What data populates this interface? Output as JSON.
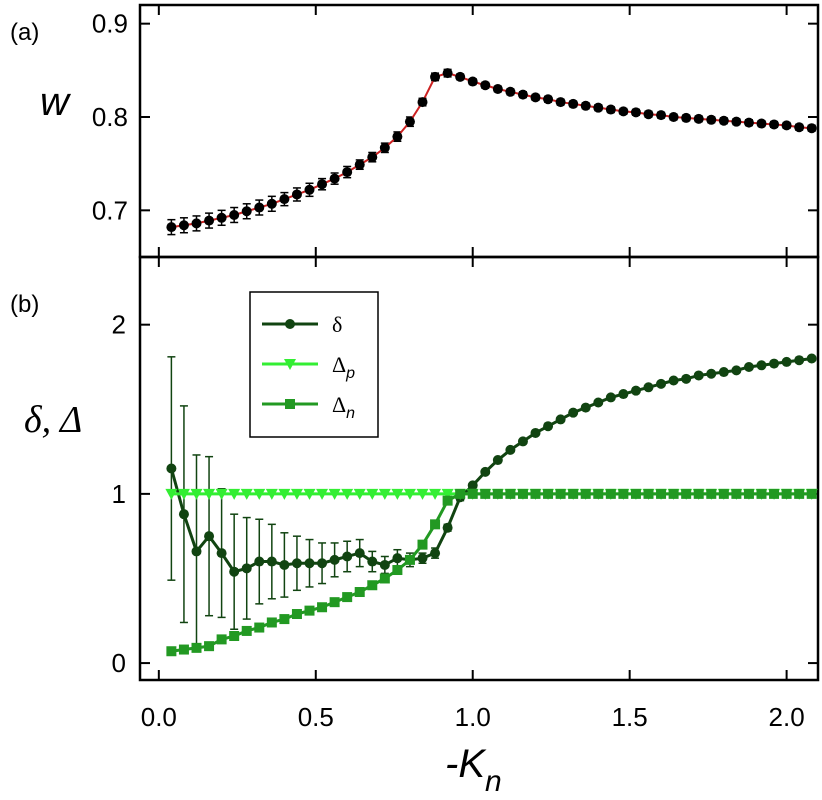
{
  "chart_data": [
    {
      "panel_label": "(a)",
      "type": "line",
      "ylabel": "w",
      "ylim": [
        0.65,
        0.92
      ],
      "y_ticks": [
        "0.7",
        "0.8",
        "0.9"
      ],
      "y_tick_values": [
        0.7,
        0.8,
        0.9
      ],
      "xlim": [
        -0.06,
        2.1
      ],
      "series": [
        {
          "name": "w",
          "marker": "circle",
          "color": "#000000",
          "line_color": "#cc2222",
          "x": [
            0.04,
            0.08,
            0.12,
            0.16,
            0.2,
            0.24,
            0.28,
            0.32,
            0.36,
            0.4,
            0.44,
            0.48,
            0.52,
            0.56,
            0.6,
            0.64,
            0.68,
            0.72,
            0.76,
            0.8,
            0.84,
            0.88,
            0.92,
            0.96,
            1.0,
            1.04,
            1.08,
            1.12,
            1.16,
            1.2,
            1.24,
            1.28,
            1.32,
            1.36,
            1.4,
            1.44,
            1.48,
            1.52,
            1.56,
            1.6,
            1.64,
            1.68,
            1.72,
            1.76,
            1.8,
            1.84,
            1.88,
            1.92,
            1.96,
            2.0,
            2.04,
            2.08
          ],
          "y": [
            0.682,
            0.684,
            0.686,
            0.689,
            0.692,
            0.695,
            0.699,
            0.703,
            0.707,
            0.712,
            0.717,
            0.722,
            0.728,
            0.734,
            0.741,
            0.749,
            0.757,
            0.767,
            0.779,
            0.795,
            0.816,
            0.843,
            0.847,
            0.843,
            0.838,
            0.834,
            0.83,
            0.827,
            0.824,
            0.821,
            0.819,
            0.816,
            0.814,
            0.812,
            0.81,
            0.808,
            0.806,
            0.805,
            0.803,
            0.802,
            0.8,
            0.799,
            0.798,
            0.797,
            0.796,
            0.795,
            0.794,
            0.793,
            0.792,
            0.791,
            0.789,
            0.788
          ],
          "yerr": [
            0.008,
            0.008,
            0.008,
            0.008,
            0.008,
            0.008,
            0.008,
            0.008,
            0.008,
            0.007,
            0.007,
            0.007,
            0.006,
            0.006,
            0.006,
            0.005,
            0.005,
            0.005,
            0.005,
            0.005,
            0.004,
            0.004,
            0.004,
            0.003,
            0.003,
            0.003,
            0.003,
            0.003,
            0.003,
            0.003,
            0.003,
            0.003,
            0.003,
            0.003,
            0.003,
            0.003,
            0.003,
            0.003,
            0.003,
            0.003,
            0.003,
            0.003,
            0.003,
            0.003,
            0.003,
            0.003,
            0.003,
            0.003,
            0.003,
            0.003,
            0.003,
            0.003
          ]
        }
      ]
    },
    {
      "panel_label": "(b)",
      "type": "line",
      "ylabel": "δ, Δ",
      "xlabel": "-K",
      "xlabel_sub": "n",
      "ylim": [
        -0.1,
        2.4
      ],
      "xlim": [
        -0.06,
        2.1
      ],
      "y_ticks": [
        "0",
        "1",
        "2"
      ],
      "y_tick_values": [
        0,
        1,
        2
      ],
      "x_ticks": [
        "0.0",
        "0.5",
        "1.0",
        "1.5",
        "2.0"
      ],
      "x_tick_values": [
        0.0,
        0.5,
        1.0,
        1.5,
        2.0
      ],
      "legend_position": "top-center",
      "series": [
        {
          "name": "δ",
          "legend_main": "δ",
          "legend_sub": "",
          "marker": "circle",
          "color": "#114411",
          "x": [
            0.04,
            0.08,
            0.12,
            0.16,
            0.2,
            0.24,
            0.28,
            0.32,
            0.36,
            0.4,
            0.44,
            0.48,
            0.52,
            0.56,
            0.6,
            0.64,
            0.68,
            0.72,
            0.76,
            0.8,
            0.84,
            0.88,
            0.92,
            0.96,
            1.0,
            1.04,
            1.08,
            1.12,
            1.16,
            1.2,
            1.24,
            1.28,
            1.32,
            1.36,
            1.4,
            1.44,
            1.48,
            1.52,
            1.56,
            1.6,
            1.64,
            1.68,
            1.72,
            1.76,
            1.8,
            1.84,
            1.88,
            1.92,
            1.96,
            2.0,
            2.04,
            2.08
          ],
          "y": [
            1.15,
            0.88,
            0.66,
            0.75,
            0.65,
            0.54,
            0.56,
            0.6,
            0.6,
            0.58,
            0.59,
            0.59,
            0.59,
            0.61,
            0.63,
            0.65,
            0.6,
            0.58,
            0.62,
            0.61,
            0.62,
            0.65,
            0.8,
            0.98,
            1.05,
            1.13,
            1.2,
            1.26,
            1.31,
            1.36,
            1.4,
            1.44,
            1.48,
            1.51,
            1.54,
            1.57,
            1.59,
            1.61,
            1.63,
            1.65,
            1.67,
            1.68,
            1.7,
            1.71,
            1.72,
            1.73,
            1.75,
            1.76,
            1.77,
            1.78,
            1.79,
            1.8
          ],
          "yerr": [
            0.66,
            0.64,
            0.57,
            0.47,
            0.38,
            0.34,
            0.3,
            0.25,
            0.22,
            0.19,
            0.16,
            0.14,
            0.12,
            0.1,
            0.09,
            0.08,
            0.06,
            0.05,
            0.05,
            0.04,
            0.03,
            0.03,
            0.02,
            0.02,
            0.0,
            0.0,
            0.0,
            0.0,
            0.0,
            0.0,
            0.0,
            0.0,
            0.0,
            0.0,
            0.0,
            0.0,
            0.0,
            0.0,
            0.0,
            0.0,
            0.0,
            0.0,
            0.0,
            0.0,
            0.0,
            0.0,
            0.0,
            0.0,
            0.0,
            0.0,
            0.0,
            0.0
          ]
        },
        {
          "name": "Δp",
          "legend_main": "Δ",
          "legend_sub": "p",
          "marker": "triangle-down",
          "color": "#33ee33",
          "x": [
            0.04,
            0.08,
            0.12,
            0.16,
            0.2,
            0.24,
            0.28,
            0.32,
            0.36,
            0.4,
            0.44,
            0.48,
            0.52,
            0.56,
            0.6,
            0.64,
            0.68,
            0.72,
            0.76,
            0.8,
            0.84,
            0.88,
            0.92,
            0.96,
            1.0,
            1.04,
            1.08,
            1.12,
            1.16,
            1.2,
            1.24,
            1.28,
            1.32,
            1.36,
            1.4,
            1.44,
            1.48,
            1.52,
            1.56,
            1.6,
            1.64,
            1.68,
            1.72,
            1.76,
            1.8,
            1.84,
            1.88,
            1.92,
            1.96,
            2.0,
            2.04,
            2.08
          ],
          "y": [
            1,
            1,
            1,
            1,
            1,
            1,
            1,
            1,
            1,
            1,
            1,
            1,
            1,
            1,
            1,
            1,
            1,
            1,
            1,
            1,
            1,
            1,
            1,
            1,
            1,
            1,
            1,
            1,
            1,
            1,
            1,
            1,
            1,
            1,
            1,
            1,
            1,
            1,
            1,
            1,
            1,
            1,
            1,
            1,
            1,
            1,
            1,
            1,
            1,
            1,
            1,
            1
          ]
        },
        {
          "name": "Δn",
          "legend_main": "Δ",
          "legend_sub": "n",
          "marker": "square",
          "color": "#229922",
          "x": [
            0.04,
            0.08,
            0.12,
            0.16,
            0.2,
            0.24,
            0.28,
            0.32,
            0.36,
            0.4,
            0.44,
            0.48,
            0.52,
            0.56,
            0.6,
            0.64,
            0.68,
            0.72,
            0.76,
            0.8,
            0.84,
            0.88,
            0.92,
            0.96,
            1.0,
            1.04,
            1.08,
            1.12,
            1.16,
            1.2,
            1.24,
            1.28,
            1.32,
            1.36,
            1.4,
            1.44,
            1.48,
            1.52,
            1.56,
            1.6,
            1.64,
            1.68,
            1.72,
            1.76,
            1.8,
            1.84,
            1.88,
            1.92,
            1.96,
            2.0,
            2.04,
            2.08
          ],
          "y": [
            0.07,
            0.08,
            0.09,
            0.1,
            0.14,
            0.16,
            0.19,
            0.21,
            0.24,
            0.26,
            0.29,
            0.31,
            0.33,
            0.36,
            0.39,
            0.42,
            0.46,
            0.5,
            0.55,
            0.61,
            0.7,
            0.82,
            0.96,
            1,
            1,
            1,
            1,
            1,
            1,
            1,
            1,
            1,
            1,
            1,
            1,
            1,
            1,
            1,
            1,
            1,
            1,
            1,
            1,
            1,
            1,
            1,
            1,
            1,
            1,
            1,
            1,
            1
          ],
          "yerr": [
            0.02,
            0.02,
            0.02,
            0.02,
            0.02,
            0.02,
            0.02,
            0.02,
            0.02,
            0.02,
            0.02,
            0.02,
            0.02,
            0.02,
            0.02,
            0.02,
            0.02,
            0.02,
            0.02,
            0.02,
            0.02,
            0.02,
            0.02,
            0.02,
            0.02,
            0.02,
            0.02,
            0.02,
            0.02,
            0.02,
            0.02,
            0.02,
            0.02,
            0.02,
            0.02,
            0.02,
            0.02,
            0.02,
            0.02,
            0.02,
            0.02,
            0.02,
            0.02,
            0.02,
            0.02,
            0.02,
            0.02,
            0.02,
            0.02,
            0.02,
            0.02,
            0.02
          ]
        }
      ]
    }
  ]
}
